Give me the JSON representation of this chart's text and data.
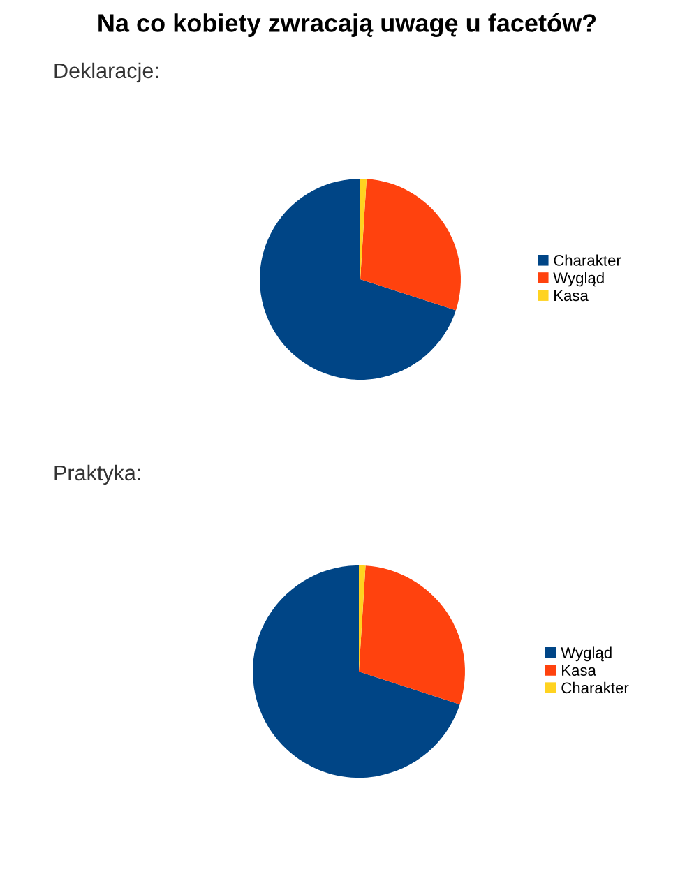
{
  "chart_data": [
    {
      "type": "pie",
      "title": "Na co kobiety zwracają uwagę u facetów?",
      "subtitle": "Deklaracje:",
      "categories": [
        "Charakter",
        "Wygląd",
        "Kasa"
      ],
      "values": [
        70,
        29,
        1
      ],
      "colors": [
        "#004586",
        "#ff420e",
        "#ffd320"
      ],
      "legend": "right"
    },
    {
      "type": "pie",
      "subtitle": "Praktyka:",
      "categories": [
        "Wygląd",
        "Kasa",
        "Charakter"
      ],
      "values": [
        70,
        29,
        1
      ],
      "colors": [
        "#004586",
        "#ff420e",
        "#ffd320"
      ],
      "legend": "right"
    }
  ]
}
